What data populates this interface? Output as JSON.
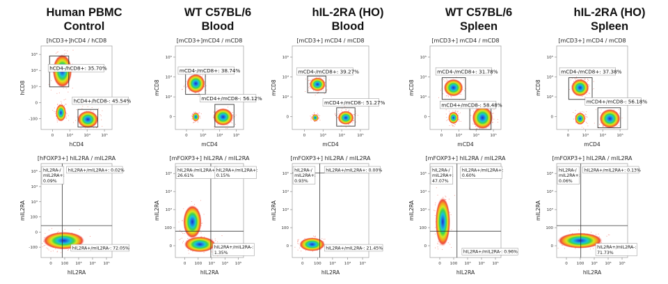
{
  "columns": [
    {
      "line1": "Human PBMC",
      "line2": "Control"
    },
    {
      "line1": "WT C57BL/6",
      "line2": "Blood"
    },
    {
      "line1": "hIL-2RA (HO)",
      "line2": "Blood"
    },
    {
      "line1": "WT C57BL/6",
      "line2": "Spleen"
    },
    {
      "line1": "hIL-2RA (HO)",
      "line2": "Spleen"
    }
  ],
  "chart_data": [
    {
      "type": "scatter",
      "row": 1,
      "column": 1,
      "title": "[hCD3+]hCD4 / hCD8",
      "xlabel": "hCD4",
      "ylabel": "hCD8",
      "x_ticks": [
        "0",
        "10³",
        "10⁴",
        "10⁵"
      ],
      "y_ticks": [
        "-100",
        "0",
        "10³",
        "10⁴",
        "10⁵"
      ],
      "gates": [
        {
          "name": "hCD4-/hCD8+",
          "label": "hCD4-/hCD8+: 35.70%",
          "percent": 35.7
        },
        {
          "name": "hCD4+/hCD8-",
          "label": "hCD4+/hCD8-: 45.54%",
          "percent": 45.54
        }
      ]
    },
    {
      "type": "scatter",
      "row": 1,
      "column": 2,
      "title": "[mCD3+]mCD4 / mCD8",
      "xlabel": "mCD4",
      "ylabel": "mCD8",
      "x_ticks": [
        "0",
        "10³",
        "10⁴",
        "10⁵"
      ],
      "y_ticks": [
        "0",
        "10³",
        "10⁴",
        "10⁵"
      ],
      "gates": [
        {
          "name": "mCD4-/mCD8+",
          "label": "mCD4-/mCD8+: 38.74%",
          "percent": 38.74
        },
        {
          "name": "mCD4+/mCD8-",
          "label": "mCD4+/mCD8-: 56.12%",
          "percent": 56.12
        }
      ]
    },
    {
      "type": "scatter",
      "row": 1,
      "column": 3,
      "title": "[mCD3+] mCD4 / mCD8",
      "xlabel": "mCD4",
      "ylabel": "mCD8",
      "x_ticks": [
        "0",
        "10³",
        "10⁴",
        "10⁵"
      ],
      "y_ticks": [
        "0",
        "10³",
        "10⁴",
        "10⁵"
      ],
      "gates": [
        {
          "name": "mCD4-/mCD8+",
          "label": "mCD4-/mCD8+: 39.27%",
          "percent": 39.27
        },
        {
          "name": "mCD4+/mCD8-",
          "label": "mCD4+/mCD8-: 51.27%",
          "percent": 51.27
        }
      ]
    },
    {
      "type": "scatter",
      "row": 1,
      "column": 4,
      "title": "[mCD3+] mCD4 / mCD8",
      "xlabel": "mCD4",
      "ylabel": "mCD8",
      "x_ticks": [
        "0",
        "10³",
        "10⁴",
        "10⁵"
      ],
      "y_ticks": [
        "0",
        "10³",
        "10⁴",
        "10⁵"
      ],
      "gates": [
        {
          "name": "mCD4-/mCD8+",
          "label": "mCD4-/mCD8+: 31.78%",
          "percent": 31.78
        },
        {
          "name": "mCD4+/mCD8-",
          "label": "mCD4+/mCD8-: 58.48%",
          "percent": 58.48
        }
      ]
    },
    {
      "type": "scatter",
      "row": 1,
      "column": 5,
      "title": "[mCD3+] mCD4 / mCD8",
      "xlabel": "mCD4",
      "ylabel": "mCD8",
      "x_ticks": [
        "0",
        "10³",
        "10⁴",
        "10⁵"
      ],
      "y_ticks": [
        "0",
        "10³",
        "10⁴",
        "10⁵"
      ],
      "gates": [
        {
          "name": "mCD4-/mCD8+",
          "label": "mCD4-/mCD8+: 37.38%",
          "percent": 37.38
        },
        {
          "name": "mCD4+/mCD8-",
          "label": "mCD4+/mCD8-: 56.18%",
          "percent": 56.18
        }
      ]
    },
    {
      "type": "scatter",
      "row": 2,
      "column": 1,
      "title": "[hFOXP3+] hIL2RA / mIL2RA",
      "xlabel": "hIL2RA",
      "ylabel": "mIL2RA",
      "x_ticks": [
        "0",
        "100",
        "10³",
        "10⁴",
        "10⁵"
      ],
      "y_ticks": [
        "-100",
        "0",
        "100",
        "10³",
        "10⁴",
        "10⁵"
      ],
      "quadrants": [
        {
          "name": "UL",
          "lines": [
            "hIL2RA-/",
            "mIL2RA+:",
            "0.09%"
          ],
          "percent": 0.09
        },
        {
          "name": "UR",
          "lines": [
            "hIL2RA+/mIL2RA+: 0.02%"
          ],
          "percent": 0.02
        },
        {
          "name": "LR",
          "lines": [
            "hIL2RA+/mIL2RA-: 72.05%"
          ],
          "percent": 72.05
        }
      ]
    },
    {
      "type": "scatter",
      "row": 2,
      "column": 2,
      "title": "[mFOXP3+] hIL2RA / mIL2RA",
      "xlabel": "hIL2RA",
      "ylabel": "mIL2RA",
      "x_ticks": [
        "0",
        "100",
        "10³",
        "10⁴",
        "10⁵"
      ],
      "y_ticks": [
        "0",
        "100",
        "10³",
        "10⁴",
        "10⁵"
      ],
      "quadrants": [
        {
          "name": "UL",
          "lines": [
            "hIL2RA-/mIL2RA+:",
            "26.61%"
          ],
          "percent": 26.61
        },
        {
          "name": "UR",
          "lines": [
            "hIL2RA+/mIL2RA+:",
            "0.15%"
          ],
          "percent": 0.15
        },
        {
          "name": "LR",
          "lines": [
            "hIL2RA+/mIL2RA-:",
            "1.35%"
          ],
          "percent": 1.35
        }
      ]
    },
    {
      "type": "scatter",
      "row": 2,
      "column": 3,
      "title": "[mFOXP3+] hIL2RA / mIL2RA",
      "xlabel": "hIL2RA",
      "ylabel": "mIL2RA",
      "x_ticks": [
        "0",
        "100",
        "10³",
        "10⁴",
        "10⁵"
      ],
      "y_ticks": [
        "0",
        "100",
        "10³",
        "10⁴",
        "10⁵"
      ],
      "quadrants": [
        {
          "name": "UL",
          "lines": [
            "hIL2RA-/",
            "mIL2RA+:",
            "0.93%"
          ],
          "percent": 0.93
        },
        {
          "name": "UR",
          "lines": [
            "hIL2RA+/mIL2RA+: 0.00%"
          ],
          "percent": 0.0
        },
        {
          "name": "LR",
          "lines": [
            "hIL2RA+/mIL2RA-: 21.45%"
          ],
          "percent": 21.45
        }
      ]
    },
    {
      "type": "scatter",
      "row": 2,
      "column": 4,
      "title": "[mFOXP3+] hIL2RA / mIL2RA",
      "xlabel": "hIL2RA",
      "ylabel": "mIL2RA",
      "x_ticks": [
        "0",
        "100",
        "10³",
        "10⁴",
        "10⁵"
      ],
      "y_ticks": [
        "0",
        "100",
        "10³",
        "10⁴",
        "10⁵"
      ],
      "quadrants": [
        {
          "name": "UL",
          "lines": [
            "hIL2RA-/",
            "mIL2RA+:",
            "47.07%"
          ],
          "percent": 47.07
        },
        {
          "name": "UR",
          "lines": [
            "hIL2RA+/mIL2RA+:",
            "0.60%"
          ],
          "percent": 0.6
        },
        {
          "name": "LR",
          "lines": [
            "hIL2RA+/mIL2RA-: 0.96%"
          ],
          "percent": 0.96
        }
      ]
    },
    {
      "type": "scatter",
      "row": 2,
      "column": 5,
      "title": "[mFOXP3+] hIL2RA / mIL2RA",
      "xlabel": "hIL2RA",
      "ylabel": "mIL2RA",
      "x_ticks": [
        "0",
        "100",
        "10³",
        "10⁴",
        "10⁵"
      ],
      "y_ticks": [
        "0",
        "100",
        "10³",
        "10⁴",
        "10⁵"
      ],
      "quadrants": [
        {
          "name": "UL",
          "lines": [
            "hIL2RA-/",
            "mIL2RA+:",
            "0.06%"
          ],
          "percent": 0.06
        },
        {
          "name": "UR",
          "lines": [
            "hIL2RA+/mIL2RA+: 0.13%"
          ],
          "percent": 0.13
        },
        {
          "name": "LR",
          "lines": [
            "hIL2RA+/mIL2RA-:",
            "71.73%"
          ],
          "percent": 71.73
        }
      ]
    }
  ]
}
